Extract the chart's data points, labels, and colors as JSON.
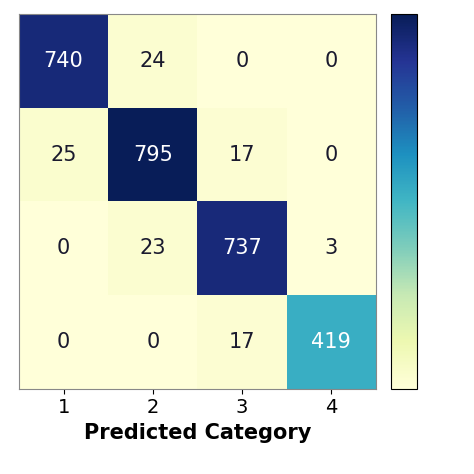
{
  "matrix": [
    [
      740,
      24,
      0,
      0
    ],
    [
      25,
      795,
      17,
      0
    ],
    [
      0,
      23,
      737,
      3
    ],
    [
      0,
      0,
      17,
      419
    ]
  ],
  "x_labels": [
    "1",
    "2",
    "3",
    "4"
  ],
  "xlabel": "Predicted Category",
  "cmap": "YlGnBu",
  "white_text_color": "#ffffff",
  "dark_text_color": "#1a1a2e",
  "fontsize_numbers": 15,
  "fontsize_ticklabels": 14,
  "fontsize_xlabel": 15,
  "vmin": 0,
  "vmax": 795,
  "bg_color": "#ffffff"
}
